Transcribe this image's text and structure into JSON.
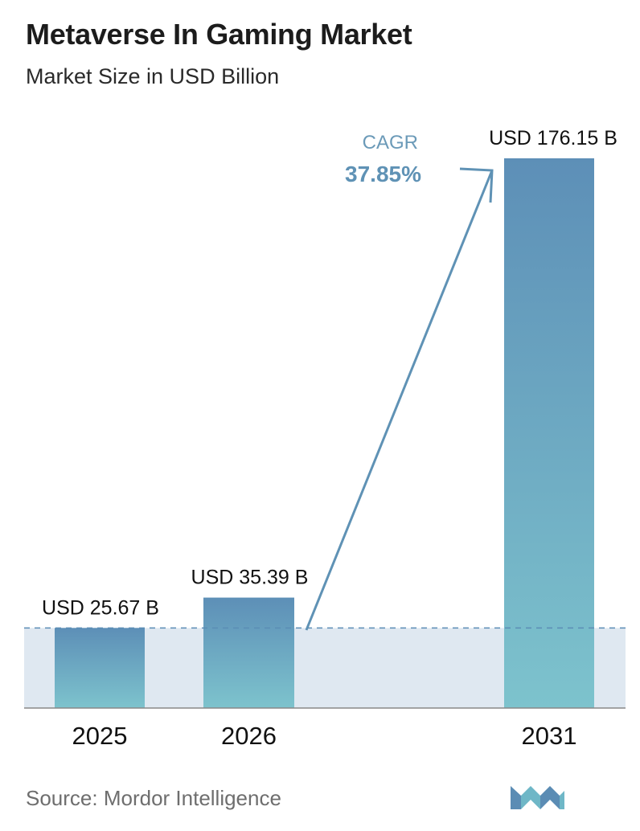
{
  "title": "Metaverse In Gaming Market",
  "subtitle": "Market Size in USD Billion",
  "cagr": {
    "label": "CAGR",
    "value": "37.85%"
  },
  "source": "Source:  Mordor Intelligence",
  "logo": "mordor-intelligence-logo",
  "colors": {
    "bar_top": "#5d8fb7",
    "bar_bottom": "#7dc3cd",
    "band": "#dfe8f1",
    "dashed_line": "#5b8db5",
    "arrow": "#5f92b5",
    "axis": "#888888"
  },
  "chart_data": {
    "type": "bar",
    "categories": [
      "2025",
      "2026",
      "2031"
    ],
    "values": [
      25.67,
      35.39,
      176.15
    ],
    "value_labels": [
      "USD 25.67 B",
      "USD 35.39 B",
      "USD 176.15 B"
    ],
    "title": "Metaverse In Gaming Market",
    "subtitle": "Market Size in USD Billion",
    "xlabel": "",
    "ylabel": "",
    "ylim": [
      0,
      176.15
    ],
    "grid": false,
    "legend": "none"
  }
}
